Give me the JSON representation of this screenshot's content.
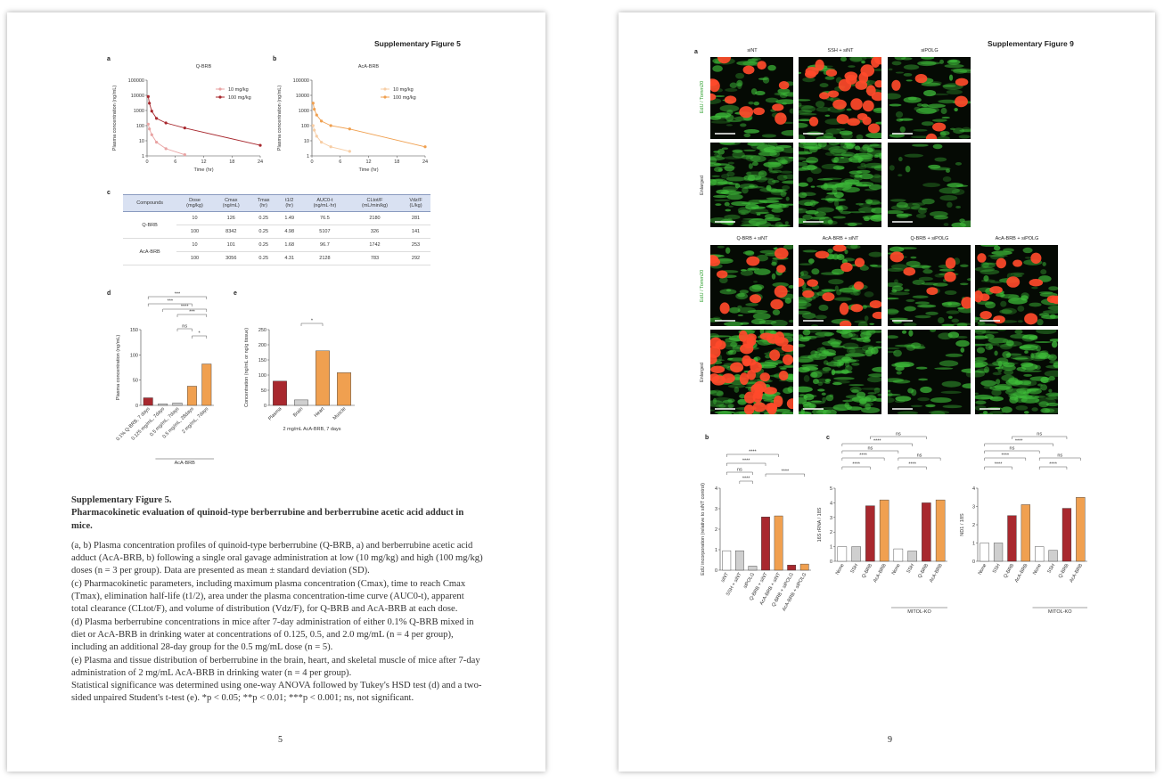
{
  "left_page": {
    "header": "Supplementary Figure 5",
    "panel_a": {
      "label": "a",
      "chart_data": {
        "type": "line",
        "title": "Q-BRB",
        "x_label": "Time (hr)",
        "y_label": "Plasma concentration (ng/mL)",
        "log_scale": true,
        "ylim": [
          1,
          100000
        ],
        "yticks": [
          1,
          10,
          100,
          1000,
          10000,
          100000
        ],
        "xlim": [
          0,
          24
        ],
        "xticks": [
          0,
          6,
          12,
          18,
          24
        ],
        "legend": "top-right",
        "series": [
          {
            "name": "10 mg/kg",
            "color": "#e9a3a3",
            "x": [
              0.25,
              0.5,
              1,
              2,
              4,
              8
            ],
            "values": [
              126,
              60,
              25,
              8,
              3,
              1.2
            ]
          },
          {
            "name": "100 mg/kg",
            "color": "#a8282e",
            "x": [
              0.25,
              0.5,
              1,
              2,
              4,
              8,
              24
            ],
            "values": [
              8342,
              3000,
              900,
              300,
              150,
              70,
              5
            ]
          }
        ]
      }
    },
    "panel_b": {
      "label": "b",
      "chart_data": {
        "type": "line",
        "title": "AcA-BRB",
        "x_label": "Time (hr)",
        "y_label": "Plasma concentration (ng/mL)",
        "log_scale": true,
        "ylim": [
          1,
          100000
        ],
        "yticks": [
          1,
          10,
          100,
          1000,
          10000,
          100000
        ],
        "xlim": [
          0,
          24
        ],
        "xticks": [
          0,
          6,
          12,
          18,
          24
        ],
        "legend": "top-right",
        "series": [
          {
            "name": "10 mg/kg",
            "color": "#f7cda4",
            "x": [
              0.25,
              0.5,
              1,
              2,
              4,
              8
            ],
            "values": [
              101,
              50,
              20,
              8,
              4,
              2
            ]
          },
          {
            "name": "100 mg/kg",
            "color": "#f0a050",
            "x": [
              0.25,
              0.5,
              1,
              2,
              4,
              8,
              24
            ],
            "values": [
              3056,
              1200,
              500,
              200,
              100,
              60,
              4
            ]
          }
        ]
      }
    },
    "panel_c": {
      "label": "c",
      "table": {
        "columns": [
          [
            "Compounds"
          ],
          [
            "Dose",
            "(mg/kg)"
          ],
          [
            "Cmax",
            "(ng/mL)"
          ],
          [
            "Tmax",
            "(hr)"
          ],
          [
            "t1/2",
            "(hr)"
          ],
          [
            "AUC0-t",
            "(ng/mL·hr)"
          ],
          [
            "CLtot/F",
            "(mL/min/kg)"
          ],
          [
            "Vdz/F",
            "(L/kg)"
          ]
        ],
        "rows": [
          {
            "compound": "Q-BRB",
            "doses": [
              [
                10,
                126,
                0.25,
                1.49,
                76.5,
                2180,
                281
              ],
              [
                100,
                8342,
                0.25,
                4.98,
                5107,
                326,
                141
              ]
            ]
          },
          {
            "compound": "AcA-BRB",
            "doses": [
              [
                10,
                101,
                0.25,
                1.68,
                96.7,
                1742,
                253
              ],
              [
                100,
                3056,
                0.25,
                4.31,
                2128,
                783,
                292
              ]
            ]
          }
        ]
      }
    },
    "panel_d": {
      "label": "d",
      "chart_data": {
        "type": "bar",
        "y_label": "Plasma concentration (ng/mL)",
        "categories": [
          "0.1% Q-BRB, 7 days",
          "0.125 mg/mL, 7days",
          "0.5 mg/mL, 7days",
          "0.5 mg/mL, 28days",
          "2 mg/mL, 7days"
        ],
        "values": [
          15,
          3,
          5,
          38,
          82
        ],
        "colors": [
          "#a8282e",
          "#cfcfcf",
          "#cfcfcf",
          "#f0a050",
          "#f0a050"
        ],
        "ylim": [
          0,
          150
        ],
        "yticks": [
          0,
          50,
          100,
          150
        ],
        "group_label": "AcA-BRB",
        "annotations": [
          "***",
          "***",
          "****",
          "***",
          "ns",
          "*"
        ]
      }
    },
    "panel_e": {
      "label": "e",
      "chart_data": {
        "type": "bar",
        "y_label": "Concentration (ng/mL or ng/g tissue)",
        "x_label": "2 mg/mL AcA-BRB, 7 days",
        "categories": [
          "Plasma",
          "Brain",
          "Heart",
          "Muscle"
        ],
        "values": [
          80,
          18,
          180,
          108
        ],
        "colors": [
          "#a8282e",
          "#cfcfcf",
          "#f0a050",
          "#f0a050"
        ],
        "ylim": [
          0,
          250
        ],
        "yticks": [
          0,
          50,
          100,
          150,
          200,
          250
        ],
        "annotations": [
          "*"
        ]
      }
    },
    "caption": {
      "title": "Supplementary Figure 5.",
      "subtitle": "Pharmacokinetic evaluation of quinoid-type berberrubine and berberrubine acetic acid adduct in mice.",
      "paragraphs": [
        "(a, b) Plasma concentration profiles of quinoid-type berberrubine (Q-BRB, a) and berberrubine acetic acid adduct (AcA-BRB, b) following a single oral gavage administration at low (10 mg/kg) and high (100 mg/kg) doses (n = 3 per group). Data are presented as mean ± standard deviation (SD).",
        "(c) Pharmacokinetic parameters, including maximum plasma concentration (Cmax), time to reach Cmax (Tmax), elimination half-life (t1/2), area under the plasma concentration-time curve (AUC0-t), apparent total clearance (CLtot/F), and volume of distribution (Vdz/F), for Q-BRB and AcA-BRB at each dose.",
        "(d) Plasma berberrubine concentrations in mice after 7-day administration of either 0.1% Q-BRB mixed in diet or AcA-BRB in drinking water at concentrations of 0.125, 0.5, and 2.0 mg/mL (n = 4 per group), including an additional 28-day group for the 0.5 mg/mL dose (n = 5).",
        "(e) Plasma and tissue distribution of berberrubine in the brain, heart, and skeletal muscle of mice after 7-day administration of 2 mg/mL AcA-BRB in drinking water (n = 4 per group).",
        "Statistical significance was determined using one-way ANOVA followed by Tukey's HSD test (d) and a two-sided unpaired Student's t-test (e). *p < 0.05; **p < 0.01; ***p < 0.001; ns, not significant."
      ]
    },
    "page_number": "5"
  },
  "right_page": {
    "header": "Supplementary Figure 9",
    "panel_a": {
      "label": "a",
      "top_columns": [
        "siNT",
        "SSH + siNT",
        "siPOLG"
      ],
      "bottom_columns": [
        "Q-BRB + siNT",
        "AcA-BRB + siNT",
        "Q-BRB + siPOLG",
        "AcA-BRB + siPOLG"
      ],
      "row_labels": [
        "EdU / Tomm20",
        "Enlarged"
      ]
    },
    "panel_b": {
      "label": "b",
      "chart_data": {
        "type": "bar",
        "y_label": "EdU incorporation (relative to siNT control)",
        "categories": [
          "siNT",
          "SSH + siNT",
          "siPOLG",
          "Q-BRB + siNT",
          "AcA-BRB + siNT",
          "Q-BRB + siPOLG",
          "AcA-BRB + siPOLG"
        ],
        "values": [
          0.95,
          0.95,
          0.2,
          2.6,
          2.65,
          0.25,
          0.3
        ],
        "colors": [
          "#ffffff",
          "#cfcfcf",
          "#cfcfcf",
          "#a8282e",
          "#f0a050",
          "#a8282e",
          "#f0a050"
        ],
        "ylim": [
          0,
          4
        ],
        "yticks": [
          0,
          1,
          2,
          3,
          4
        ],
        "annotations": [
          "****",
          "****",
          "ns",
          "****",
          "****"
        ]
      }
    },
    "panel_c": {
      "label": "c",
      "charts": [
        {
          "chart_data": {
            "type": "bar",
            "y_label": "16S rRNA / 18S",
            "categories": [
              "None",
              "SSH",
              "Q-BRB",
              "AcA-BRB",
              "None",
              "SSH",
              "Q-BRB",
              "AcA-BRB"
            ],
            "values": [
              1,
              1,
              3.8,
              4.2,
              0.85,
              0.7,
              4.0,
              4.2
            ],
            "colors": [
              "#ffffff",
              "#cfcfcf",
              "#a8282e",
              "#f0a050",
              "#ffffff",
              "#cfcfcf",
              "#a8282e",
              "#f0a050"
            ],
            "ylim": [
              0,
              5
            ],
            "yticks": [
              0,
              1,
              2,
              3,
              4,
              5
            ],
            "group_label": "MITOL-KO",
            "annotations": [
              "****",
              "****",
              "ns",
              "****",
              "****",
              "ns",
              "ns"
            ]
          }
        },
        {
          "chart_data": {
            "type": "bar",
            "y_label": "ND1 / 18S",
            "categories": [
              "None",
              "SSH",
              "Q-BRB",
              "AcA-BRB",
              "None",
              "SSH",
              "Q-BRB",
              "AcA-BRB"
            ],
            "values": [
              1,
              1,
              2.5,
              3.1,
              0.8,
              0.6,
              2.9,
              3.5
            ],
            "colors": [
              "#ffffff",
              "#cfcfcf",
              "#a8282e",
              "#f0a050",
              "#ffffff",
              "#cfcfcf",
              "#a8282e",
              "#f0a050"
            ],
            "ylim": [
              0,
              4
            ],
            "yticks": [
              0,
              1,
              2,
              3,
              4
            ],
            "group_label": "MITOL-KO",
            "annotations": [
              "****",
              "****",
              "ns",
              "****",
              "****",
              "ns",
              "ns"
            ]
          }
        }
      ]
    },
    "page_number": "9"
  }
}
